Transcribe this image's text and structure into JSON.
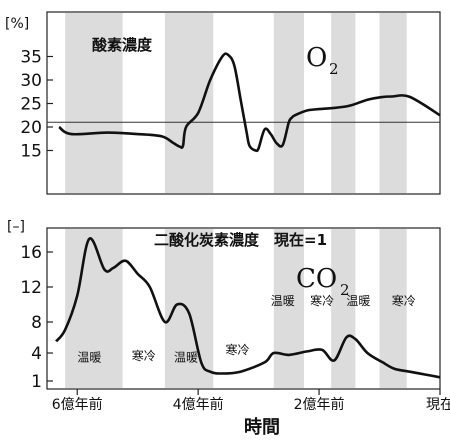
{
  "chart_data": [
    {
      "type": "line",
      "title": "酸素濃度",
      "molecule": "O",
      "molecule_sub": "2",
      "ylabel": "[%]",
      "ylim": [
        0,
        40
      ],
      "yticks": [
        15,
        20,
        25,
        30,
        35
      ],
      "reference_line": 21,
      "xlim": [
        6.5,
        0
      ],
      "x": [
        6.3,
        6.1,
        5.5,
        5.0,
        4.6,
        4.4,
        4.3,
        4.25,
        4.2,
        4.0,
        3.8,
        3.6,
        3.5,
        3.4,
        3.3,
        3.2,
        3.15,
        3.05,
        3.0,
        2.9,
        2.8,
        2.7,
        2.6,
        2.5,
        2.45,
        2.4,
        2.2,
        2.0,
        1.8,
        1.5,
        1.2,
        1.0,
        0.8,
        0.5,
        0.0
      ],
      "values": [
        20,
        18.5,
        18.8,
        18.5,
        18,
        16.5,
        15.8,
        16,
        20,
        23,
        30,
        35,
        35.3,
        33,
        26,
        19,
        16,
        15,
        15.5,
        19.5,
        18.5,
        16.5,
        16.2,
        21,
        22,
        22.5,
        23.5,
        23.8,
        24,
        24.5,
        25.8,
        26.3,
        26.5,
        26.4,
        22.5
      ]
    },
    {
      "type": "line",
      "title": "二酸化炭素濃度　現在=1",
      "molecule": "CO",
      "molecule_sub": "2",
      "ylabel": "[–]",
      "ylim": [
        1,
        18.5
      ],
      "yticks": [
        1,
        4,
        8,
        12,
        16
      ],
      "xlim": [
        6.5,
        0
      ],
      "x": [
        6.35,
        6.2,
        6.0,
        5.8,
        5.55,
        5.4,
        5.2,
        5.0,
        4.8,
        4.55,
        4.35,
        4.15,
        3.95,
        3.8,
        3.6,
        3.3,
        2.9,
        2.75,
        2.5,
        2.2,
        1.95,
        1.75,
        1.55,
        1.4,
        1.2,
        0.95,
        0.75,
        0.5,
        0.25,
        0.0
      ],
      "values": [
        5.5,
        7,
        11,
        17.5,
        14,
        14.2,
        15,
        13.5,
        12,
        8,
        10,
        9,
        3,
        2,
        1.8,
        2,
        3,
        4,
        3.8,
        4.2,
        4.4,
        3.2,
        6,
        5.8,
        4,
        3,
        2.3,
        2,
        1.7,
        1.4
      ]
    }
  ],
  "climate_bands": [
    {
      "from": 6.2,
      "to": 5.25,
      "label": "温暖"
    },
    {
      "from": 4.55,
      "to": 3.75,
      "label": "温暖"
    },
    {
      "from": 2.75,
      "to": 2.25,
      "label": "温暖"
    },
    {
      "from": 1.8,
      "to": 1.4,
      "label": ""
    },
    {
      "from": 1.0,
      "to": 0.55,
      "label": "温暖"
    }
  ],
  "climate_labels": [
    {
      "x": 5.8,
      "y": 3.6,
      "label": "温暖"
    },
    {
      "x": 4.9,
      "y": 3.8,
      "label": "寒冷"
    },
    {
      "x": 4.2,
      "y": 3.6,
      "label": "温暖"
    },
    {
      "x": 3.35,
      "y": 4.5,
      "label": "寒冷"
    },
    {
      "x": 2.6,
      "y": 10.5,
      "label": "温暖"
    },
    {
      "x": 1.95,
      "y": 10.5,
      "label": "寒冷"
    },
    {
      "x": 1.35,
      "y": 10.5,
      "label": "温暖"
    },
    {
      "x": 0.6,
      "y": 10.5,
      "label": "寒冷"
    }
  ],
  "xaxis": {
    "ticks": [
      {
        "x": 6,
        "label": "6億年前"
      },
      {
        "x": 4,
        "label": "4億年前"
      },
      {
        "x": 2,
        "label": "2億年前"
      },
      {
        "x": 0,
        "label": "現在"
      }
    ],
    "label": "時間"
  }
}
